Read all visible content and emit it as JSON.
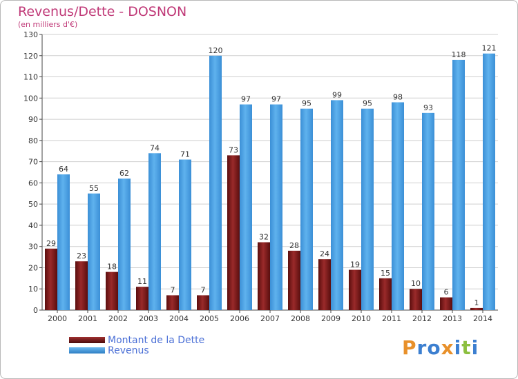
{
  "header": {
    "title": "Revenus/Dette - DOSNON",
    "subtitle": "(en milliers d'€)"
  },
  "colors": {
    "debt_bar": "#7a1a1a",
    "revenue_bar": "#4a9fe0",
    "title": "#c03a78",
    "legend_text": "#4a6fd6"
  },
  "chart_data": {
    "type": "bar",
    "title": "Revenus/Dette - DOSNON",
    "subtitle": "(en milliers d'€)",
    "categories": [
      "2000",
      "2001",
      "2002",
      "2003",
      "2004",
      "2005",
      "2006",
      "2007",
      "2008",
      "2009",
      "2010",
      "2011",
      "2012",
      "2013",
      "2014"
    ],
    "series": [
      {
        "name": "Montant de la Dette",
        "values": [
          29,
          23,
          18,
          11,
          7,
          7,
          73,
          32,
          28,
          24,
          19,
          15,
          10,
          6,
          1
        ]
      },
      {
        "name": "Revenus",
        "values": [
          64,
          55,
          62,
          74,
          71,
          120,
          97,
          97,
          95,
          99,
          95,
          98,
          93,
          118,
          121
        ]
      }
    ],
    "ylim": [
      0,
      130
    ],
    "yticks": [
      0,
      10,
      20,
      30,
      40,
      50,
      60,
      70,
      80,
      90,
      100,
      110,
      120,
      130
    ],
    "grid": true,
    "legend_position": "bottom-left"
  },
  "legend": {
    "items": [
      {
        "label": "Montant de la Dette",
        "color": "#7a1a1a"
      },
      {
        "label": "Revenus",
        "color": "#4a9fe0"
      }
    ]
  },
  "logo": {
    "letters": [
      "P",
      "r",
      "o",
      "x",
      "i",
      "t",
      "i"
    ],
    "colors": [
      "#e8902a",
      "#3c7fd0",
      "#3c7fd0",
      "#e8902a",
      "#3c7fd0",
      "#8cbf3f",
      "#3c7fd0"
    ]
  }
}
